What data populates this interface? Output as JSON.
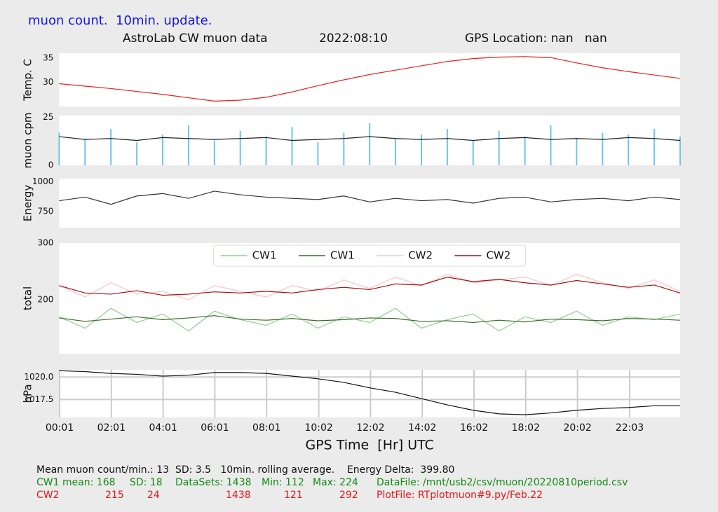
{
  "header": {
    "update": "muon count.  10min. update.",
    "title": "AstroLab CW muon data",
    "date": "2022:08:10",
    "location": "GPS Location: nan   nan"
  },
  "stats": {
    "summary": "Mean muon count/min.: 13  SD: 3.5   10min. rolling average.    Energy Delta:  399.80",
    "cw1": [
      "CW1 mean: 168",
      "SD: 18",
      "DataSets: 1438",
      "Min: 112",
      "Max: 224",
      "DataFile: /mnt/usb2/csv/muon/20220810period.csv"
    ],
    "cw2": [
      "CW2",
      "215",
      "24",
      "1438",
      "121",
      "292",
      "PlotFile: RTplotmuon#9.py/Feb.22"
    ]
  },
  "chart_data": [
    {
      "type": "line",
      "ylabel": "Temp. C",
      "xlim": [
        0,
        24
      ],
      "ylim": [
        25,
        36
      ],
      "yticks": [
        30,
        35
      ],
      "x": [
        0,
        1,
        2,
        3,
        4,
        5,
        6,
        7,
        8,
        9,
        10,
        11,
        12,
        13,
        14,
        15,
        16,
        17,
        18,
        19,
        20,
        21,
        22,
        23,
        24
      ],
      "series": [
        {
          "color": "#e8201c",
          "values": [
            29.7,
            29.2,
            28.7,
            28.1,
            27.5,
            26.8,
            26.1,
            26.3,
            26.9,
            28.0,
            29.3,
            30.5,
            31.6,
            32.5,
            33.4,
            34.3,
            34.9,
            35.2,
            35.3,
            35.1,
            34.0,
            33.0,
            32.2,
            31.5,
            30.8
          ]
        }
      ]
    },
    {
      "type": "bar",
      "ylabel": "muon cpm",
      "xlim": [
        0,
        24
      ],
      "ylim": [
        0,
        26
      ],
      "yticks": [
        0,
        25
      ],
      "x": [
        0,
        1,
        2,
        3,
        4,
        5,
        6,
        7,
        8,
        9,
        10,
        11,
        12,
        13,
        14,
        15,
        16,
        17,
        18,
        19,
        20,
        21,
        22,
        23,
        24
      ],
      "series": [
        {
          "color": "#6cc4ee",
          "values": [
            17,
            14,
            19,
            12,
            16,
            21,
            13,
            18,
            15,
            20,
            12,
            17,
            22,
            14,
            16,
            19,
            13,
            18,
            15,
            21,
            14,
            17,
            16,
            19,
            15
          ]
        },
        {
          "type": "line",
          "color": "#222222",
          "values": [
            15,
            13.5,
            14,
            13,
            14.5,
            14,
            13.5,
            14,
            14.5,
            13,
            13.5,
            14,
            15,
            14,
            13.5,
            14,
            13,
            14,
            14.5,
            13.5,
            14,
            13.5,
            14.5,
            14,
            13
          ]
        }
      ]
    },
    {
      "type": "line",
      "ylabel": "Energy",
      "xlim": [
        0,
        24
      ],
      "ylim": [
        615,
        1025
      ],
      "yticks": [
        750,
        1000
      ],
      "x": [
        0,
        1,
        2,
        3,
        4,
        5,
        6,
        7,
        8,
        9,
        10,
        11,
        12,
        13,
        14,
        15,
        16,
        17,
        18,
        19,
        20,
        21,
        22,
        23,
        24
      ],
      "series": [
        {
          "color": "#333333",
          "values": [
            840,
            870,
            810,
            880,
            900,
            860,
            920,
            890,
            870,
            860,
            850,
            880,
            830,
            860,
            840,
            850,
            820,
            860,
            870,
            830,
            850,
            860,
            840,
            870,
            850
          ]
        }
      ]
    },
    {
      "type": "line",
      "ylabel": "total",
      "xlim": [
        0,
        24
      ],
      "ylim": [
        105,
        300
      ],
      "yticks": [
        200,
        300
      ],
      "legend": "upper center",
      "x": [
        0,
        1,
        2,
        3,
        4,
        5,
        6,
        7,
        8,
        9,
        10,
        11,
        12,
        13,
        14,
        15,
        16,
        17,
        18,
        19,
        20,
        21,
        22,
        23,
        24
      ],
      "series": [
        {
          "name": "CW1",
          "color": "#8fcf8f",
          "values": [
            170,
            150,
            185,
            160,
            175,
            145,
            180,
            165,
            155,
            175,
            150,
            170,
            160,
            185,
            150,
            165,
            175,
            145,
            170,
            160,
            180,
            155,
            170,
            165,
            175
          ]
        },
        {
          "name": "CW1",
          "color": "#3a6b2a",
          "values": [
            168,
            162,
            166,
            170,
            165,
            168,
            172,
            166,
            164,
            167,
            163,
            165,
            168,
            167,
            162,
            163,
            160,
            164,
            161,
            166,
            165,
            163,
            167,
            166,
            164
          ]
        },
        {
          "name": "CW2",
          "color": "#ffc0cb",
          "values": [
            225,
            205,
            230,
            210,
            215,
            200,
            225,
            215,
            205,
            225,
            215,
            235,
            220,
            240,
            225,
            245,
            230,
            235,
            240,
            225,
            245,
            230,
            220,
            235,
            215
          ]
        },
        {
          "name": "CW2",
          "color": "#a01010",
          "values": [
            225,
            212,
            210,
            216,
            208,
            210,
            214,
            212,
            215,
            212,
            218,
            222,
            218,
            228,
            226,
            240,
            232,
            236,
            230,
            226,
            234,
            228,
            222,
            226,
            212
          ]
        }
      ]
    },
    {
      "type": "line",
      "ylabel": "hPa",
      "xlabel": "GPS Time  [Hr] UTC",
      "grid": true,
      "xlim": [
        0,
        24
      ],
      "ylim": [
        1015.5,
        1020.8
      ],
      "yticks": [
        {
          "value": 1020,
          "label": "1020.0"
        },
        {
          "value": 1017.5,
          "label": "1017.5"
        }
      ],
      "xticks": [
        {
          "value": 0.017,
          "label": "00:01"
        },
        {
          "value": 2.017,
          "label": "02:01"
        },
        {
          "value": 4.017,
          "label": "04:01"
        },
        {
          "value": 6.017,
          "label": "06:01"
        },
        {
          "value": 8.017,
          "label": "08:01"
        },
        {
          "value": 10.033,
          "label": "10:02"
        },
        {
          "value": 12.033,
          "label": "12:02"
        },
        {
          "value": 14.033,
          "label": "14:02"
        },
        {
          "value": 16.033,
          "label": "16:02"
        },
        {
          "value": 18.033,
          "label": "18:02"
        },
        {
          "value": 20.033,
          "label": "20:02"
        },
        {
          "value": 22.05,
          "label": "22:03"
        }
      ],
      "x": [
        0,
        1,
        2,
        3,
        4,
        5,
        6,
        7,
        8,
        9,
        10,
        11,
        12,
        13,
        14,
        15,
        16,
        17,
        18,
        19,
        20,
        21,
        22,
        23,
        24
      ],
      "series": [
        {
          "color": "#111111",
          "values": [
            1020.7,
            1020.6,
            1020.4,
            1020.3,
            1020.1,
            1020.2,
            1020.5,
            1020.5,
            1020.4,
            1020.1,
            1019.8,
            1019.4,
            1018.8,
            1018.3,
            1017.6,
            1016.9,
            1016.3,
            1015.9,
            1015.8,
            1016.0,
            1016.3,
            1016.5,
            1016.6,
            1016.8,
            1016.8
          ]
        }
      ]
    }
  ]
}
